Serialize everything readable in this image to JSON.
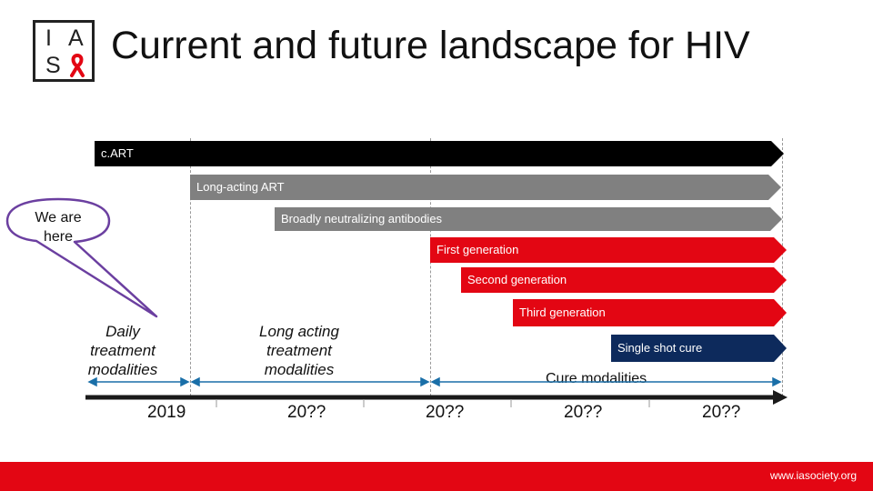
{
  "header": {
    "title": "Current and future landscape for HIV",
    "logo": {
      "letters": [
        "I",
        "A",
        "S"
      ],
      "ribbon_color": "#e30613"
    }
  },
  "bars": [
    {
      "id": "cart",
      "label": "c.ART",
      "color": "#000000"
    },
    {
      "id": "long-acting-art",
      "label": "Long-acting ART",
      "color": "#808080"
    },
    {
      "id": "bnab",
      "label": "Broadly neutralizing antibodies",
      "color": "#808080"
    },
    {
      "id": "first-gen",
      "label": "First generation",
      "color": "#e30613"
    },
    {
      "id": "second-gen",
      "label": "Second generation",
      "color": "#e30613"
    },
    {
      "id": "third-gen",
      "label": "Third generation",
      "color": "#e30613"
    },
    {
      "id": "single-shot-cure",
      "label": "Single shot cure",
      "color": "#0d2a5c"
    }
  ],
  "callout": {
    "text": "We are here",
    "line1": "We are",
    "line2": "here",
    "border_color": "#6b3fa0"
  },
  "modalities": {
    "daily": {
      "line1": "Daily",
      "line2": "treatment",
      "line3": "modalities"
    },
    "long_acting": {
      "line1": "Long acting",
      "line2": "treatment",
      "line3": "modalities"
    },
    "cure": "Cure modalities"
  },
  "timeline": {
    "years": [
      "2019",
      "20??",
      "20??",
      "20??",
      "20??"
    ],
    "arrow_color": "#1a1a1a"
  },
  "footer": {
    "url": "www.iasociety.org",
    "color": "#e30613"
  }
}
